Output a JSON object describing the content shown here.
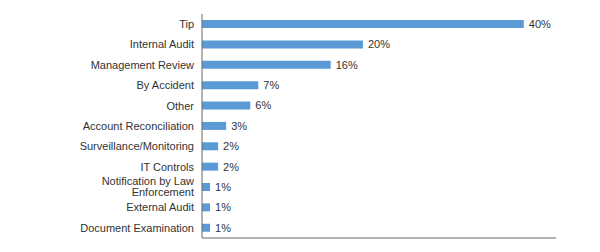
{
  "chart_data": {
    "type": "bar",
    "orientation": "horizontal",
    "categories": [
      "Document Examination",
      "External Audit",
      "Notification by Law Enforcement",
      "IT Controls",
      "Surveillance/Monitoring",
      "Account Reconciliation",
      "Other",
      "By Accident",
      "Management Review",
      "Internal Audit",
      "Tip"
    ],
    "values": [
      1,
      1,
      1,
      2,
      2,
      3,
      6,
      7,
      16,
      20,
      40
    ],
    "value_labels": [
      "1%",
      "1%",
      "1%",
      "2%",
      "2%",
      "3%",
      "6%",
      "7%",
      "16%",
      "20%",
      "40%"
    ],
    "data_labels": true,
    "color": "#5b9bd5",
    "xlim": [
      0,
      44
    ],
    "xticks": [],
    "tick_labels": "y",
    "grid": false
  }
}
